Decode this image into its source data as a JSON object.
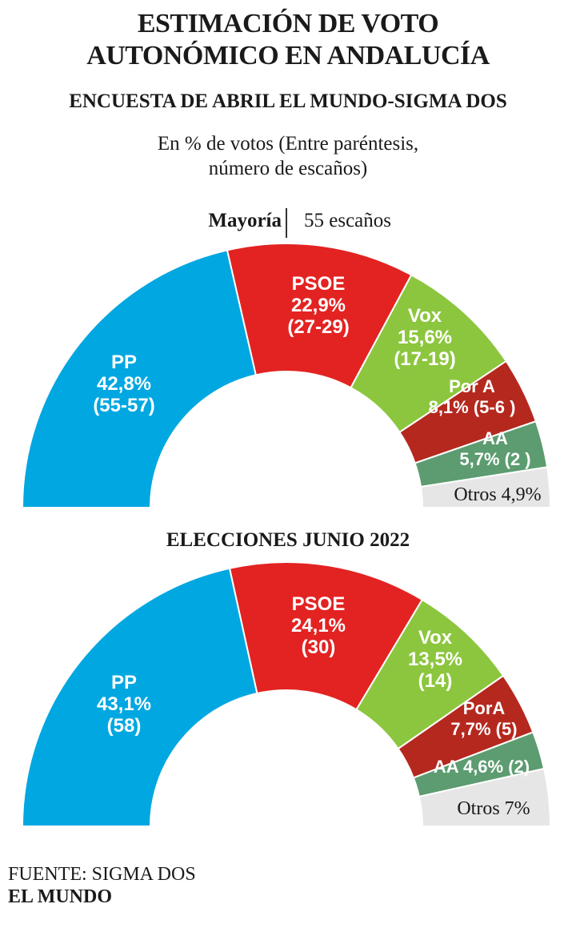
{
  "header": {
    "title_line1": "ESTIMACIÓN DE VOTO",
    "title_line2": "AUTONÓMICO EN ANDALUCÍA",
    "subtitle": "ENCUESTA DE ABRIL EL MUNDO-SIGMA DOS",
    "note_line1": "En % de votos (Entre paréntesis,",
    "note_line2": "número de escaños)"
  },
  "majority": {
    "label": "Mayoría",
    "value": "55 escaños"
  },
  "section2_title": "ELECCIONES JUNIO 2022",
  "footer": {
    "source": "FUENTE: SIGMA DOS",
    "brand": "EL MUNDO"
  },
  "colors": {
    "PP": "#00a7e1",
    "PSOE": "#e32322",
    "Vox": "#8cc63e",
    "PorA": "#b5281e",
    "AA": "#5c9c70",
    "Otros": "#e6e6e6"
  },
  "chart_data": [
    {
      "type": "pie",
      "subtype": "half-donut",
      "title": "ENCUESTA DE ABRIL EL MUNDO-SIGMA DOS",
      "unit": "% de votos",
      "series": [
        {
          "name": "PP",
          "value": 42.8,
          "seats": "55-57",
          "lines": [
            "PP",
            "42,8%",
            "(55-57)"
          ]
        },
        {
          "name": "PSOE",
          "value": 22.9,
          "seats": "27-29",
          "lines": [
            "PSOE",
            "22,9%",
            "(27-29)"
          ]
        },
        {
          "name": "Vox",
          "value": 15.6,
          "seats": "17-19",
          "lines": [
            "Vox",
            "15,6%",
            "(17-19)"
          ]
        },
        {
          "name": "Por A",
          "value": 8.1,
          "seats": "5-6",
          "lines": [
            "Por A",
            "8,1% (5-6 )"
          ]
        },
        {
          "name": "AA",
          "value": 5.7,
          "seats": "2",
          "lines": [
            "AA",
            "5,7% (2 )"
          ]
        },
        {
          "name": "Otros",
          "value": 4.9,
          "seats": "",
          "lines": [
            "Otros 4,9%"
          ]
        }
      ]
    },
    {
      "type": "pie",
      "subtype": "half-donut",
      "title": "ELECCIONES JUNIO 2022",
      "unit": "% de votos",
      "series": [
        {
          "name": "PP",
          "value": 43.1,
          "seats": "58",
          "lines": [
            "PP",
            "43,1%",
            "(58)"
          ]
        },
        {
          "name": "PSOE",
          "value": 24.1,
          "seats": "30",
          "lines": [
            "PSOE",
            "24,1%",
            "(30)"
          ]
        },
        {
          "name": "Vox",
          "value": 13.5,
          "seats": "14",
          "lines": [
            "Vox",
            "13,5%",
            "(14)"
          ]
        },
        {
          "name": "PorA",
          "value": 7.7,
          "seats": "5",
          "lines": [
            "PorA",
            "7,7% (5)"
          ]
        },
        {
          "name": "AA",
          "value": 4.6,
          "seats": "2",
          "lines": [
            "AA 4,6% (2)"
          ]
        },
        {
          "name": "Otros",
          "value": 7.0,
          "seats": "",
          "lines": [
            "Otros 7%"
          ]
        }
      ]
    }
  ]
}
